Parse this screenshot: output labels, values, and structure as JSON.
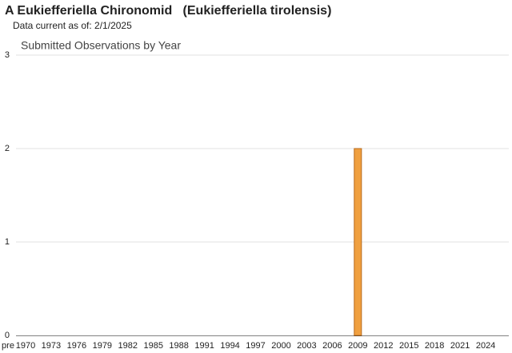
{
  "title": "A Eukiefferiella Chironomid   (Eukiefferiella tirolensis)",
  "subtitle": "Data current as of: 2/1/2025",
  "chart_data": {
    "type": "bar",
    "title": "Submitted Observations by Year",
    "categories": [
      "pre",
      "1970",
      null,
      null,
      "1973",
      null,
      null,
      "1976",
      null,
      null,
      "1979",
      null,
      null,
      "1982",
      null,
      null,
      "1985",
      null,
      null,
      "1988",
      null,
      null,
      "1991",
      null,
      null,
      "1994",
      null,
      null,
      "1997",
      null,
      null,
      "2000",
      null,
      null,
      "2003",
      null,
      null,
      "2006",
      null,
      null,
      "2009",
      null,
      null,
      "2012",
      null,
      null,
      "2015",
      null,
      null,
      "2018",
      null,
      null,
      "2021",
      null,
      null,
      "2024",
      null
    ],
    "values": [
      0,
      0,
      0,
      0,
      0,
      0,
      0,
      0,
      0,
      0,
      0,
      0,
      0,
      0,
      0,
      0,
      0,
      0,
      0,
      0,
      0,
      0,
      0,
      0,
      0,
      0,
      0,
      0,
      0,
      0,
      0,
      0,
      0,
      0,
      0,
      0,
      0,
      0,
      0,
      0,
      2,
      0,
      0,
      0,
      0,
      0,
      0,
      0,
      0,
      0,
      0,
      0,
      0,
      0,
      0,
      0,
      0
    ],
    "color": "#f0a040",
    "ylim": [
      0,
      3
    ],
    "yticks": [
      0,
      1,
      2,
      3
    ],
    "grid": true
  }
}
